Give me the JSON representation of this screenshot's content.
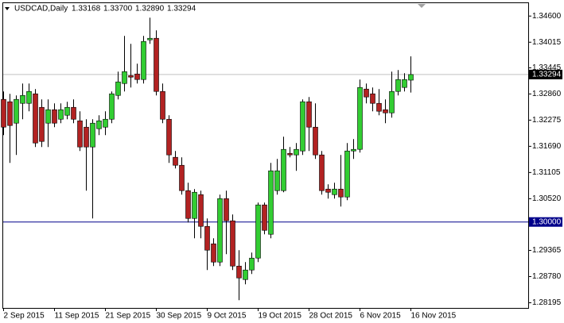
{
  "chart_data": {
    "type": "candlestick",
    "title": "USDCAD,Daily",
    "info_values": [
      "1.33168",
      "1.33700",
      "1.32890",
      "1.33294"
    ],
    "categories": [
      "2 Sep 2015",
      null,
      null,
      null,
      null,
      null,
      null,
      null,
      "11 Sep 2015",
      null,
      null,
      null,
      null,
      null,
      null,
      null,
      "21 Sep 2015",
      null,
      null,
      null,
      null,
      null,
      null,
      null,
      "30 Sep 2015",
      null,
      null,
      null,
      null,
      null,
      null,
      null,
      "9 Oct 2015",
      null,
      null,
      null,
      null,
      null,
      null,
      null,
      "19 Oct 2015",
      null,
      null,
      null,
      null,
      null,
      null,
      null,
      "28 Oct 2015",
      null,
      null,
      null,
      null,
      null,
      null,
      null,
      "6 Nov 2015",
      null,
      null,
      null,
      null,
      null,
      null,
      null,
      "16 Nov 2015"
    ],
    "open": [
      1.32739,
      1.32686,
      1.32207,
      1.3265,
      1.3265,
      1.32863,
      1.32561,
      1.32207,
      1.32508,
      1.32295,
      1.32384,
      1.32561,
      1.3226,
      1.32118,
      1.31675,
      1.32083,
      1.32118,
      1.32295,
      1.32827,
      1.33093,
      1.33271,
      1.33306,
      1.33182,
      1.34068,
      1.34104,
      1.32916,
      1.32295,
      1.31445,
      1.31267,
      1.307,
      1.30079,
      1.30611,
      1.29902,
      1.29512,
      1.29104,
      1.30522,
      1.30026,
      1.29015,
      1.28714,
      1.28927,
      1.29193,
      1.30381,
      1.29725,
      1.307,
      1.307,
      1.31533,
      1.31498,
      1.31586,
      1.32686,
      1.32118,
      1.31498,
      1.30735,
      1.30611,
      1.30735,
      1.30558,
      1.31586,
      1.31622,
      1.32969,
      1.32863,
      1.3265,
      1.32508,
      1.32437,
      1.32916,
      1.33005,
      1.33168
    ],
    "high": [
      1.32916,
      1.32863,
      1.32827,
      1.33093,
      1.33093,
      1.32969,
      1.32739,
      1.32739,
      1.3265,
      1.3265,
      1.32686,
      1.32739,
      1.32473,
      1.32295,
      1.32295,
      1.32384,
      1.32473,
      1.32916,
      1.33359,
      1.34157,
      1.3398,
      1.33537,
      1.34157,
      1.34565,
      1.34281,
      1.33093,
      1.32384,
      1.31586,
      1.31445,
      1.30877,
      1.30735,
      1.307,
      1.30079,
      1.29636,
      1.30611,
      1.307,
      1.30168,
      1.2937,
      1.29104,
      1.29317,
      1.30434,
      1.30434,
      1.3132,
      1.31409,
      1.31905,
      1.31675,
      1.31764,
      1.32739,
      1.32792,
      1.3265,
      1.31586,
      1.30842,
      1.30877,
      1.31498,
      1.31764,
      1.31852,
      1.33182,
      1.33093,
      1.33005,
      1.32969,
      1.32739,
      1.33359,
      1.33395,
      1.33324,
      1.337
    ],
    "low": [
      1.31941,
      1.3132,
      1.31498,
      1.32295,
      1.32473,
      1.31675,
      1.31675,
      1.31675,
      1.32118,
      1.32207,
      1.32295,
      1.32207,
      1.31586,
      1.307,
      1.30079,
      1.31941,
      1.31941,
      1.32207,
      1.32739,
      1.32916,
      1.33005,
      1.33093,
      1.33093,
      1.3398,
      1.32827,
      1.32207,
      1.3132,
      1.31196,
      1.30611,
      1.29991,
      1.29636,
      1.29636,
      1.28927,
      1.29015,
      1.29015,
      1.29281,
      1.28927,
      1.28253,
      1.28608,
      1.28838,
      1.29104,
      1.29725,
      1.29636,
      1.30611,
      1.30664,
      1.31445,
      1.31143,
      1.31498,
      1.31586,
      1.31409,
      1.30611,
      1.30522,
      1.30522,
      1.30345,
      1.30487,
      1.31409,
      1.31551,
      1.3265,
      1.32473,
      1.32384,
      1.32207,
      1.32331,
      1.32827,
      1.32916,
      1.3289
    ],
    "close": [
      1.32118,
      1.32154,
      1.32739,
      1.32827,
      1.32916,
      1.31764,
      1.31799,
      1.32508,
      1.32207,
      1.32508,
      1.32561,
      1.32295,
      1.31675,
      1.31675,
      1.32207,
      1.3226,
      1.32295,
      1.32863,
      1.33129,
      1.33359,
      1.33235,
      1.33182,
      1.34033,
      1.34104,
      1.32916,
      1.32295,
      1.31498,
      1.31267,
      1.307,
      1.30079,
      1.30664,
      1.29902,
      1.2937,
      1.29104,
      1.30522,
      1.30026,
      1.29015,
      1.28749,
      1.28927,
      1.29193,
      1.30381,
      1.29813,
      1.31143,
      1.31143,
      1.31622,
      1.31498,
      1.31622,
      1.32686,
      1.32118,
      1.31498,
      1.307,
      1.30664,
      1.30735,
      1.30558,
      1.31586,
      1.31622,
      1.33005,
      1.32792,
      1.3265,
      1.32473,
      1.32437,
      1.32916,
      1.33182,
      1.33182,
      1.33294
    ],
    "up_color": "#32cd32",
    "down_color": "#b22222",
    "ylim": [
      1.2808,
      1.3487
    ],
    "yticks": [
      {
        "value": 1.346,
        "label": "1.34600"
      },
      {
        "value": 1.34015,
        "label": "1.34015"
      },
      {
        "value": 1.33445,
        "label": "1.33445"
      },
      {
        "value": 1.3286,
        "label": "1.32860"
      },
      {
        "value": 1.32275,
        "label": "1.32275"
      },
      {
        "value": 1.3169,
        "label": "1.31690"
      },
      {
        "value": 1.31105,
        "label": "1.31105"
      },
      {
        "value": 1.3052,
        "label": "1.30520"
      },
      {
        "value": 1.29365,
        "label": "1.29365"
      },
      {
        "value": 1.2878,
        "label": "1.28780"
      },
      {
        "value": 1.28195,
        "label": "1.28195"
      }
    ],
    "hline": {
      "value": 1.3,
      "label": "1.30000",
      "color": "#00008b"
    },
    "current_price": {
      "value": 1.33294,
      "label": "1.33294"
    }
  }
}
